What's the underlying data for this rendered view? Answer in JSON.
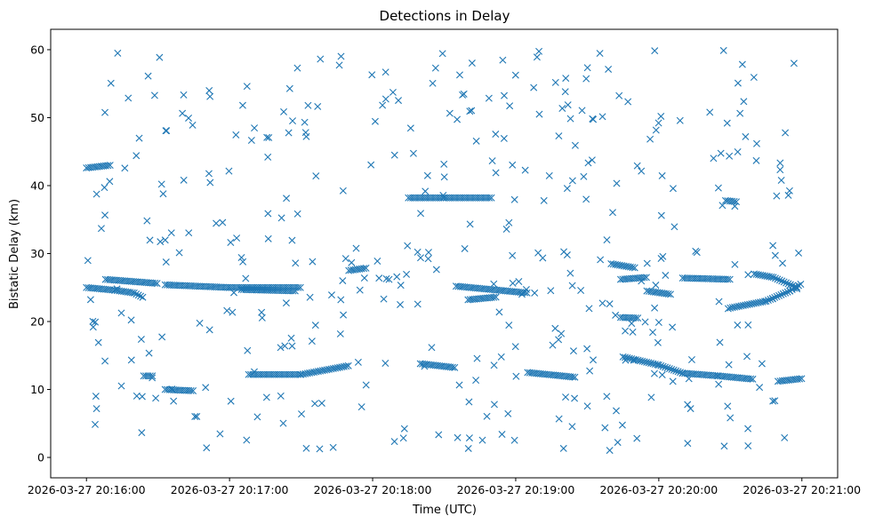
{
  "chart_data": {
    "type": "scatter",
    "title": "Detections in Delay",
    "xlabel": "Time (UTC)",
    "ylabel": "Bistatic Delay (km)",
    "x_ticks": [
      "2026-03-27 20:16:00",
      "2026-03-27 20:17:00",
      "2026-03-27 20:18:00",
      "2026-03-27 20:19:00",
      "2026-03-27 20:20:00",
      "2026-03-27 20:21:00"
    ],
    "y_ticks": [
      0,
      10,
      20,
      30,
      40,
      50,
      60
    ],
    "xlim": [
      "2026-03-27 20:15:45",
      "2026-03-27 20:21:15"
    ],
    "ylim": [
      -3,
      63
    ],
    "grid": false,
    "marker": "x",
    "color": "#1f77b4",
    "tracks": [
      {
        "points": [
          [
            "2026-03-27 20:16:00",
            42.6
          ],
          [
            "2026-03-27 20:16:10",
            43.0
          ]
        ]
      },
      {
        "points": [
          [
            "2026-03-27 20:16:00",
            25.0
          ],
          [
            "2026-03-27 20:16:12",
            24.6
          ],
          [
            "2026-03-27 20:16:20",
            24.2
          ],
          [
            "2026-03-27 20:16:24",
            23.5
          ]
        ]
      },
      {
        "points": [
          [
            "2026-03-27 20:16:08",
            26.2
          ],
          [
            "2026-03-27 20:16:30",
            25.6
          ]
        ]
      },
      {
        "points": [
          [
            "2026-03-27 20:16:33",
            25.4
          ],
          [
            "2026-03-27 20:17:00",
            25.0
          ],
          [
            "2026-03-27 20:17:30",
            25.0
          ]
        ]
      },
      {
        "points": [
          [
            "2026-03-27 20:17:05",
            24.7
          ],
          [
            "2026-03-27 20:17:28",
            24.5
          ]
        ]
      },
      {
        "points": [
          [
            "2026-03-27 20:16:24",
            12.0
          ],
          [
            "2026-03-27 20:16:28",
            12.0
          ]
        ]
      },
      {
        "points": [
          [
            "2026-03-27 20:16:33",
            10.0
          ],
          [
            "2026-03-27 20:16:45",
            9.8
          ]
        ]
      },
      {
        "points": [
          [
            "2026-03-27 20:17:08",
            12.2
          ],
          [
            "2026-03-27 20:17:30",
            12.2
          ],
          [
            "2026-03-27 20:17:50",
            13.5
          ]
        ]
      },
      {
        "points": [
          [
            "2026-03-27 20:17:50",
            27.5
          ],
          [
            "2026-03-27 20:17:58",
            27.9
          ]
        ]
      },
      {
        "points": [
          [
            "2026-03-27 20:18:15",
            38.2
          ],
          [
            "2026-03-27 20:18:30",
            38.2
          ],
          [
            "2026-03-27 20:18:50",
            38.2
          ]
        ]
      },
      {
        "points": [
          [
            "2026-03-27 20:18:35",
            25.2
          ],
          [
            "2026-03-27 20:19:05",
            24.2
          ]
        ]
      },
      {
        "points": [
          [
            "2026-03-27 20:18:40",
            23.2
          ],
          [
            "2026-03-27 20:18:52",
            23.6
          ]
        ]
      },
      {
        "points": [
          [
            "2026-03-27 20:18:20",
            13.8
          ],
          [
            "2026-03-27 20:18:35",
            13.2
          ]
        ]
      },
      {
        "points": [
          [
            "2026-03-27 20:19:05",
            12.5
          ],
          [
            "2026-03-27 20:19:25",
            11.8
          ]
        ]
      },
      {
        "points": [
          [
            "2026-03-27 20:19:40",
            28.5
          ],
          [
            "2026-03-27 20:19:50",
            27.9
          ]
        ]
      },
      {
        "points": [
          [
            "2026-03-27 20:19:44",
            26.2
          ],
          [
            "2026-03-27 20:19:55",
            26.5
          ]
        ]
      },
      {
        "points": [
          [
            "2026-03-27 20:19:55",
            24.5
          ],
          [
            "2026-03-27 20:20:05",
            24.0
          ]
        ]
      },
      {
        "points": [
          [
            "2026-03-27 20:19:44",
            20.6
          ],
          [
            "2026-03-27 20:19:52",
            20.5
          ]
        ]
      },
      {
        "points": [
          [
            "2026-03-27 20:19:45",
            14.8
          ],
          [
            "2026-03-27 20:20:00",
            13.6
          ],
          [
            "2026-03-27 20:20:10",
            12.4
          ],
          [
            "2026-03-27 20:20:25",
            12.0
          ],
          [
            "2026-03-27 20:20:40",
            11.5
          ]
        ]
      },
      {
        "points": [
          [
            "2026-03-27 20:20:10",
            26.4
          ],
          [
            "2026-03-27 20:20:30",
            26.2
          ]
        ]
      },
      {
        "points": [
          [
            "2026-03-27 20:20:30",
            22.0
          ],
          [
            "2026-03-27 20:20:45",
            23.0
          ],
          [
            "2026-03-27 20:20:55",
            24.5
          ],
          [
            "2026-03-27 20:21:00",
            25.6
          ]
        ]
      },
      {
        "points": [
          [
            "2026-03-27 20:20:40",
            27.0
          ],
          [
            "2026-03-27 20:20:48",
            26.5
          ],
          [
            "2026-03-27 20:20:58",
            25.0
          ]
        ]
      },
      {
        "points": [
          [
            "2026-03-27 20:20:50",
            11.2
          ],
          [
            "2026-03-27 20:21:00",
            11.6
          ]
        ]
      },
      {
        "points": [
          [
            "2026-03-27 20:20:28",
            37.8
          ],
          [
            "2026-03-27 20:20:33",
            37.6
          ]
        ]
      }
    ],
    "clutter_count": 400
  }
}
